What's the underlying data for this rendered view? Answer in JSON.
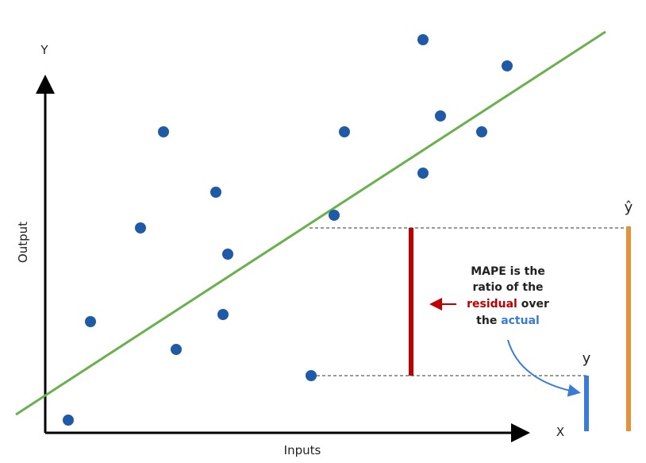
{
  "axes": {
    "y_label": "Y",
    "x_label": "X",
    "y_title": "Output",
    "x_title": "Inputs"
  },
  "labels": {
    "y_hat": "ŷ",
    "y": "y"
  },
  "annotation": {
    "line1": "MAPE is the",
    "line2": "ratio of the",
    "residual": "residual",
    "over": "over",
    "the": "the",
    "actual": "actual"
  }
}
